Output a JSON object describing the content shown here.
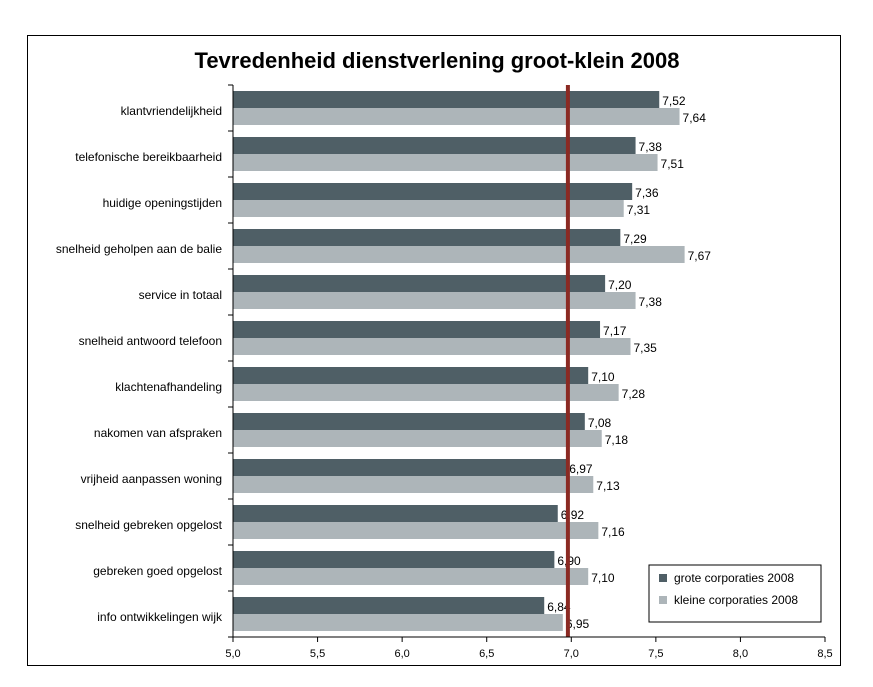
{
  "chart_data": {
    "type": "bar",
    "orientation": "horizontal",
    "title": "Tevredenheid dienstverlening groot-klein 2008",
    "xlabel": "",
    "ylabel": "",
    "xlim": [
      5.0,
      8.5
    ],
    "x_ticks": [
      "5,0",
      "5,5",
      "6,0",
      "6,5",
      "7,0",
      "7,5",
      "8,0",
      "8,5"
    ],
    "x_tick_values": [
      5.0,
      5.5,
      6.0,
      6.5,
      7.0,
      7.5,
      8.0,
      8.5
    ],
    "grid": false,
    "legend_position": "bottom-right",
    "reference_line": {
      "value": 6.98,
      "color": "#8b2a23"
    },
    "categories": [
      "klantvriendelijkheid",
      "telefonische bereikbaarheid",
      "huidige openingstijden",
      "snelheid geholpen aan de balie",
      "service in totaal",
      "snelheid antwoord telefoon",
      "klachtenafhandeling",
      "nakomen van afspraken",
      "vrijheid aanpassen woning",
      "snelheid gebreken opgelost",
      "gebreken goed opgelost",
      "info ontwikkelingen wijk"
    ],
    "series": [
      {
        "name": "grote corporaties 2008",
        "color": "#4f5f66",
        "values": [
          7.52,
          7.38,
          7.36,
          7.29,
          7.2,
          7.17,
          7.1,
          7.08,
          6.97,
          6.92,
          6.9,
          6.84
        ],
        "labels": [
          "7,52",
          "7,38",
          "7,36",
          "7,29",
          "7,20",
          "7,17",
          "7,10",
          "7,08",
          "6,97",
          "6,92",
          "6,90",
          "6,84"
        ]
      },
      {
        "name": "kleine corporaties 2008",
        "color": "#adb5b9",
        "values": [
          7.64,
          7.51,
          7.31,
          7.67,
          7.38,
          7.35,
          7.28,
          7.18,
          7.13,
          7.16,
          7.1,
          6.95
        ],
        "labels": [
          "7,64",
          "7,51",
          "7,31",
          "7,67",
          "7,38",
          "7,35",
          "7,28",
          "7,18",
          "7,13",
          "7,16",
          "7,10",
          "6,95"
        ]
      }
    ]
  }
}
